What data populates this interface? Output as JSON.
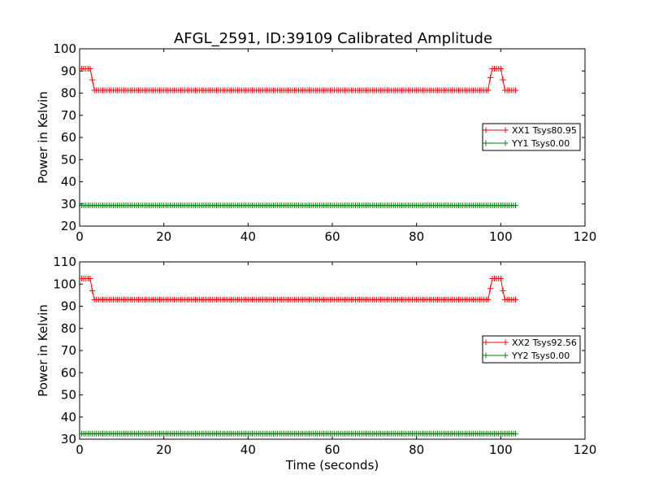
{
  "chart_data": [
    {
      "type": "line",
      "title": "AFGL_2591, ID:39109 Calibrated Amplitude",
      "xlabel": "",
      "ylabel": "Power in Kelvin",
      "xlim": [
        0,
        120
      ],
      "ylim": [
        20,
        100
      ],
      "xticks": [
        0,
        20,
        40,
        60,
        80,
        100,
        120
      ],
      "yticks": [
        20,
        30,
        40,
        50,
        60,
        70,
        80,
        90,
        100
      ],
      "grid": false,
      "legend_position": "right",
      "marker": "plus",
      "series": [
        {
          "name": "XX1 Tsys80.95",
          "color": "#ff0000",
          "segments": [
            {
              "x_start": 0.5,
              "x_end": 2.5,
              "value": 91.0
            },
            {
              "x_start": 3.0,
              "x_end": 3.0,
              "value": 86.0
            },
            {
              "x_start": 3.5,
              "x_end": 97.0,
              "value": 81.3
            },
            {
              "x_start": 97.5,
              "x_end": 97.5,
              "value": 87.0
            },
            {
              "x_start": 98.0,
              "x_end": 100.0,
              "value": 91.0
            },
            {
              "x_start": 100.5,
              "x_end": 100.5,
              "value": 86.0
            },
            {
              "x_start": 101.0,
              "x_end": 103.5,
              "value": 81.3
            }
          ]
        },
        {
          "name": "YY1 Tsys0.00",
          "color": "#008000",
          "segments": [
            {
              "x_start": 0.5,
              "x_end": 103.5,
              "value": 29.3
            }
          ]
        }
      ]
    },
    {
      "type": "line",
      "title": "",
      "xlabel": "Time (seconds)",
      "ylabel": "Power in Kelvin",
      "xlim": [
        0,
        120
      ],
      "ylim": [
        30,
        110
      ],
      "xticks": [
        0,
        20,
        40,
        60,
        80,
        100,
        120
      ],
      "yticks": [
        30,
        40,
        50,
        60,
        70,
        80,
        90,
        100,
        110
      ],
      "grid": false,
      "legend_position": "right",
      "marker": "plus",
      "series": [
        {
          "name": "XX2 Tsys92.56",
          "color": "#ff0000",
          "segments": [
            {
              "x_start": 0.5,
              "x_end": 2.5,
              "value": 102.5
            },
            {
              "x_start": 3.0,
              "x_end": 3.0,
              "value": 97.0
            },
            {
              "x_start": 3.5,
              "x_end": 97.0,
              "value": 93.0
            },
            {
              "x_start": 97.5,
              "x_end": 97.5,
              "value": 98.0
            },
            {
              "x_start": 98.0,
              "x_end": 100.0,
              "value": 102.5
            },
            {
              "x_start": 100.5,
              "x_end": 100.5,
              "value": 97.0
            },
            {
              "x_start": 101.0,
              "x_end": 103.5,
              "value": 93.0
            }
          ]
        },
        {
          "name": "YY2 Tsys0.00",
          "color": "#008000",
          "segments": [
            {
              "x_start": 0.5,
              "x_end": 103.5,
              "value": 32.5
            }
          ]
        }
      ]
    }
  ]
}
